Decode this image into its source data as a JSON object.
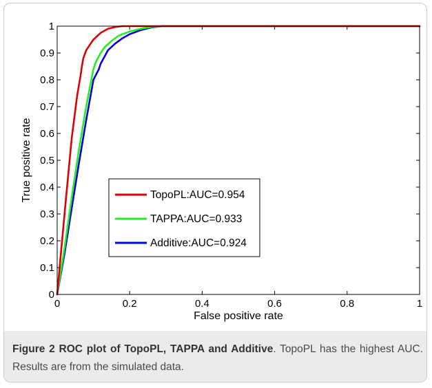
{
  "chart_data": {
    "type": "line",
    "title": "",
    "xlabel": "False positive rate",
    "ylabel": "True positive rate",
    "xlim": [
      0,
      1
    ],
    "ylim": [
      0,
      1
    ],
    "xticks": [
      0,
      0.2,
      0.4,
      0.6,
      0.8,
      1
    ],
    "xtick_labels": [
      "0",
      "0.2",
      "0.4",
      "0.6",
      "0.8",
      "1"
    ],
    "yticks": [
      0,
      0.1,
      0.2,
      0.3,
      0.4,
      0.5,
      0.6,
      0.7,
      0.8,
      0.9,
      1
    ],
    "ytick_labels": [
      "0",
      "0.1",
      "0.2",
      "0.3",
      "0.4",
      "0.5",
      "0.6",
      "0.7",
      "0.8",
      "0.9",
      "1"
    ],
    "grid": false,
    "legend_position": "center-left",
    "series": [
      {
        "name": "TopoPL:AUC=0.954",
        "color": "#dd0000",
        "x": [
          0,
          0.01,
          0.025,
          0.04,
          0.055,
          0.065,
          0.068,
          0.072,
          0.08,
          0.09,
          0.1,
          0.12,
          0.14,
          0.16,
          0.18,
          0.2,
          1
        ],
        "y": [
          0,
          0.15,
          0.37,
          0.58,
          0.74,
          0.82,
          0.85,
          0.88,
          0.91,
          0.93,
          0.95,
          0.975,
          0.99,
          0.997,
          1.0,
          1.0,
          1.0
        ]
      },
      {
        "name": "TAPPA:AUC=0.933",
        "color": "#22ee22",
        "x": [
          0,
          0.02,
          0.04,
          0.06,
          0.08,
          0.1,
          0.105,
          0.11,
          0.12,
          0.13,
          0.15,
          0.17,
          0.2,
          0.23,
          0.26,
          0.3,
          1
        ],
        "y": [
          0,
          0.17,
          0.36,
          0.54,
          0.7,
          0.84,
          0.86,
          0.875,
          0.9,
          0.92,
          0.945,
          0.965,
          0.98,
          0.99,
          0.997,
          1.0,
          1.0
        ]
      },
      {
        "name": "Additive:AUC=0.924",
        "color": "#0000dd",
        "x": [
          0,
          0.02,
          0.04,
          0.06,
          0.08,
          0.1,
          0.115,
          0.12,
          0.13,
          0.14,
          0.16,
          0.18,
          0.2,
          0.23,
          0.26,
          0.29,
          1
        ],
        "y": [
          0,
          0.15,
          0.32,
          0.49,
          0.65,
          0.8,
          0.84,
          0.86,
          0.885,
          0.91,
          0.935,
          0.955,
          0.97,
          0.985,
          0.995,
          1.0,
          1.0
        ]
      }
    ]
  },
  "caption": {
    "label": "Figure 2 ROC plot of TopoPL, TAPPA and Additive",
    "text": ". TopoPL has the highest AUC. Results are from the simulated data."
  }
}
